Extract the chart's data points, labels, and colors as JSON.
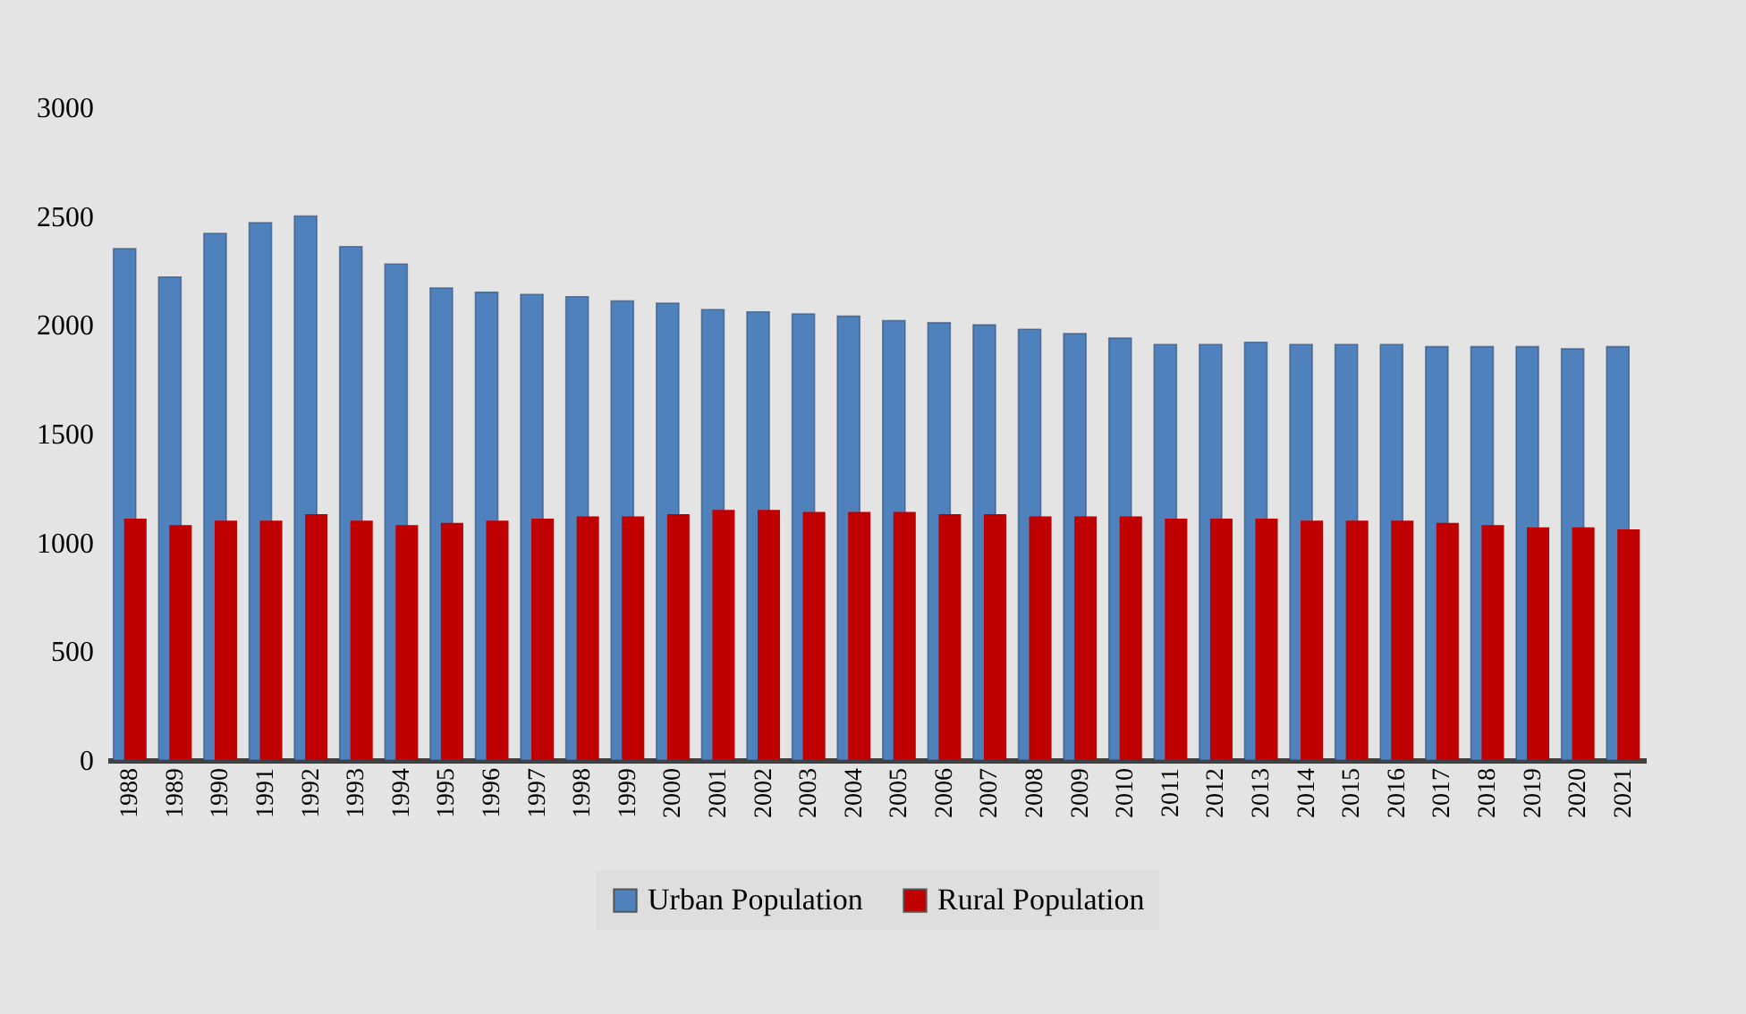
{
  "chart_data": {
    "type": "bar",
    "categories": [
      "1988",
      "1989",
      "1990",
      "1991",
      "1992",
      "1993",
      "1994",
      "1995",
      "1996",
      "1997",
      "1998",
      "1999",
      "2000",
      "2001",
      "2002",
      "2003",
      "2004",
      "2005",
      "2006",
      "2007",
      "2008",
      "2009",
      "2010",
      "2011",
      "2012",
      "2013",
      "2014",
      "2015",
      "2016",
      "2017",
      "2018",
      "2019",
      "2020",
      "2021"
    ],
    "series": [
      {
        "name": "Urban Population",
        "color": "#4f81bd",
        "values": [
          2350,
          2220,
          2420,
          2470,
          2500,
          2360,
          2280,
          2170,
          2150,
          2140,
          2130,
          2110,
          2100,
          2070,
          2060,
          2050,
          2040,
          2020,
          2010,
          2000,
          1980,
          1960,
          1940,
          1910,
          1910,
          1920,
          1910,
          1910,
          1910,
          1900,
          1900,
          1900,
          1890,
          1900
        ]
      },
      {
        "name": "Rural Population",
        "color": "#c00000",
        "values": [
          1110,
          1080,
          1100,
          1100,
          1130,
          1100,
          1080,
          1090,
          1100,
          1110,
          1120,
          1120,
          1130,
          1150,
          1150,
          1140,
          1140,
          1140,
          1130,
          1130,
          1120,
          1120,
          1120,
          1110,
          1110,
          1110,
          1100,
          1100,
          1100,
          1090,
          1080,
          1070,
          1070,
          1060
        ]
      }
    ],
    "ylim": [
      0,
      3000
    ],
    "yticks": [
      0,
      500,
      1000,
      1500,
      2000,
      2500,
      3000
    ],
    "grid": false,
    "legend": "bottom"
  }
}
